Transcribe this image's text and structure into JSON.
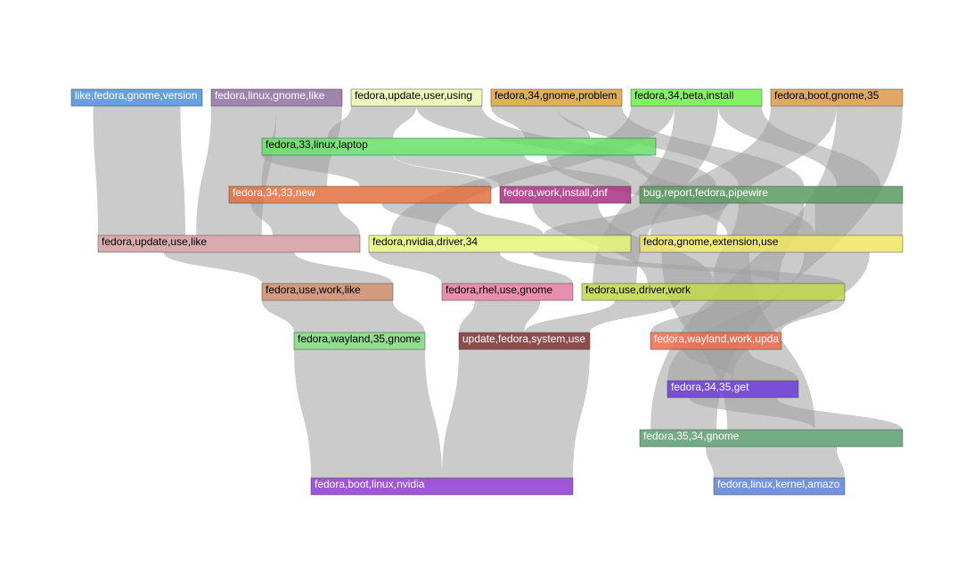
{
  "nodes": [
    {
      "id": "n0",
      "label": "like,fedora,gnome,version",
      "color": "#4a90d9",
      "text_color": "#ffffff"
    },
    {
      "id": "n1",
      "label": "fedora,linux,gnome,like",
      "color": "#8e6fa0",
      "text_color": "#ffffff"
    },
    {
      "id": "n2",
      "label": "fedora,update,user,using",
      "color": "#eaf7b0",
      "text_color": "#000000"
    },
    {
      "id": "n3",
      "label": "fedora,34,gnome,problem",
      "color": "#d9a23a",
      "text_color": "#000000"
    },
    {
      "id": "n4",
      "label": "fedora,34,beta,install",
      "color": "#6ef04a",
      "text_color": "#000000"
    },
    {
      "id": "n5",
      "label": "fedora,boot,gnome,35",
      "color": "#d9994a",
      "text_color": "#000000"
    },
    {
      "id": "n6",
      "label": "fedora,33,linux,laptop",
      "color": "#66e06a",
      "text_color": "#000000"
    },
    {
      "id": "n7",
      "label": "fedora,34,33,new",
      "color": "#e07040",
      "text_color": "#ffffff"
    },
    {
      "id": "n8",
      "label": "fedora,work,install,dnf",
      "color": "#a83080",
      "text_color": "#ffffff"
    },
    {
      "id": "n9",
      "label": "bug,report,fedora,pipewire",
      "color": "#5a9a60",
      "text_color": "#ffffff"
    },
    {
      "id": "n10",
      "label": "fedora,update,use,like",
      "color": "#d49ca0",
      "text_color": "#000000"
    },
    {
      "id": "n11",
      "label": "fedora,nvidia,driver,34",
      "color": "#e6f47a",
      "text_color": "#000000"
    },
    {
      "id": "n12",
      "label": "fedora,gnome,extension,use",
      "color": "#eee660",
      "text_color": "#000000"
    },
    {
      "id": "n13",
      "label": "fedora,use,work,like",
      "color": "#c98a6a",
      "text_color": "#000000"
    },
    {
      "id": "n14",
      "label": "fedora,rhel,use,gnome",
      "color": "#e47aa0",
      "text_color": "#000000"
    },
    {
      "id": "n15",
      "label": "fedora,use,driver,work",
      "color": "#bcd64a",
      "text_color": "#000000"
    },
    {
      "id": "n16",
      "label": "fedora,wayland,35,gnome",
      "color": "#7ed87a",
      "text_color": "#000000"
    },
    {
      "id": "n17",
      "label": "update,fedora,system,use",
      "color": "#7a2e2e",
      "text_color": "#ffffff"
    },
    {
      "id": "n18",
      "label": "fedora,wayland,work,upda",
      "color": "#f06a4a",
      "text_color": "#ffffff"
    },
    {
      "id": "n19",
      "label": "fedora,34,35,get",
      "color": "#6a3ad8",
      "text_color": "#ffffff"
    },
    {
      "id": "n20",
      "label": "fedora,35,34,gnome",
      "color": "#5a9e6e",
      "text_color": "#ffffff"
    },
    {
      "id": "n21",
      "label": "fedora,boot,linux,nvidia",
      "color": "#8e3ad0",
      "text_color": "#ffffff"
    },
    {
      "id": "n22",
      "label": "fedora,linux,kernel,amazo",
      "color": "#5a80d8",
      "text_color": "#ffffff"
    }
  ],
  "links": [
    {
      "source": "n0",
      "target": "n10"
    },
    {
      "source": "n1",
      "target": "n7"
    },
    {
      "source": "n1",
      "target": "n10"
    },
    {
      "source": "n2",
      "target": "n6"
    },
    {
      "source": "n2",
      "target": "n9"
    },
    {
      "source": "n3",
      "target": "n6"
    },
    {
      "source": "n3",
      "target": "n9"
    },
    {
      "source": "n4",
      "target": "n9"
    },
    {
      "source": "n4",
      "target": "n11"
    },
    {
      "source": "n4",
      "target": "n15"
    },
    {
      "source": "n5",
      "target": "n12"
    },
    {
      "source": "n5",
      "target": "n20"
    },
    {
      "source": "n6",
      "target": "n7"
    },
    {
      "source": "n6",
      "target": "n8"
    },
    {
      "source": "n6",
      "target": "n12"
    },
    {
      "source": "n7",
      "target": "n10"
    },
    {
      "source": "n7",
      "target": "n11"
    },
    {
      "source": "n8",
      "target": "n15"
    },
    {
      "source": "n9",
      "target": "n12"
    },
    {
      "source": "n9",
      "target": "n15"
    },
    {
      "source": "n9",
      "target": "n11"
    },
    {
      "source": "n10",
      "target": "n13"
    },
    {
      "source": "n11",
      "target": "n14"
    },
    {
      "source": "n11",
      "target": "n15"
    },
    {
      "source": "n12",
      "target": "n19"
    },
    {
      "source": "n12",
      "target": "n20"
    },
    {
      "source": "n13",
      "target": "n16"
    },
    {
      "source": "n14",
      "target": "n17"
    },
    {
      "source": "n15",
      "target": "n17"
    },
    {
      "source": "n15",
      "target": "n18"
    },
    {
      "source": "n16",
      "target": "n21"
    },
    {
      "source": "n17",
      "target": "n21"
    },
    {
      "source": "n18",
      "target": "n19"
    },
    {
      "source": "n19",
      "target": "n20"
    },
    {
      "source": "n20",
      "target": "n22"
    }
  ]
}
